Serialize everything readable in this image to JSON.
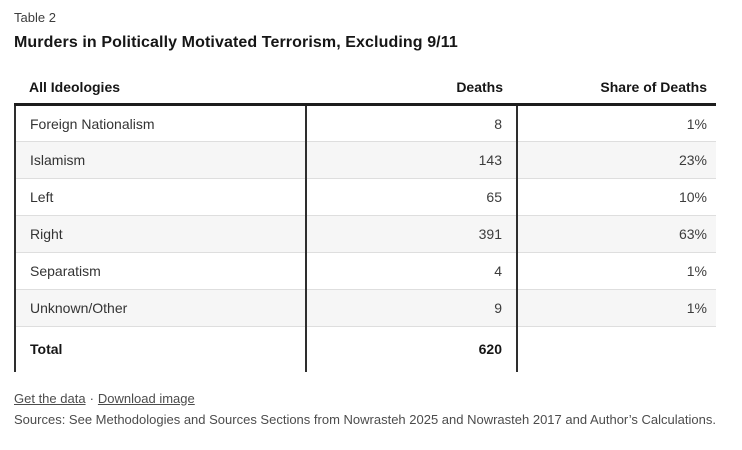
{
  "header": {
    "table_label": "Table 2",
    "title": "Murders in Politically Motivated Terrorism, Excluding 9/11"
  },
  "chart_data": {
    "type": "table",
    "title": "Murders in Politically Motivated Terrorism, Excluding 9/11",
    "columns": [
      "All Ideologies",
      "Deaths",
      "Share of Deaths"
    ],
    "rows": [
      {
        "ideology": "Foreign Nationalism",
        "deaths": 8,
        "share": "1%"
      },
      {
        "ideology": "Islamism",
        "deaths": 143,
        "share": "23%"
      },
      {
        "ideology": "Left",
        "deaths": 65,
        "share": "10%"
      },
      {
        "ideology": "Right",
        "deaths": 391,
        "share": "63%"
      },
      {
        "ideology": "Separatism",
        "deaths": 4,
        "share": "1%"
      },
      {
        "ideology": "Unknown/Other",
        "deaths": 9,
        "share": "1%"
      }
    ],
    "total_row": {
      "ideology": "Total",
      "deaths": 620,
      "share": ""
    },
    "layout_hints": {
      "zebra_striping": true,
      "column_dividers": true,
      "numeric_columns_right_aligned": true
    }
  },
  "footer": {
    "get_data_link": "Get the data",
    "link_separator": "·",
    "download_image_link": "Download image",
    "sources": "Sources: See Methodologies and Sources Sections from Nowrasteh 2025 and Nowrasteh 2017 and Author’s Calculations."
  },
  "colors": {
    "background": "#ffffff",
    "header_rule": "#1d1d1d",
    "column_divider": "#2e2e2e",
    "row_divider": "#dedede",
    "zebra_row_bg": "#f6f6f6",
    "title_text": "#161616",
    "cell_text": "#333333",
    "footer_text": "#4c4c4c"
  }
}
